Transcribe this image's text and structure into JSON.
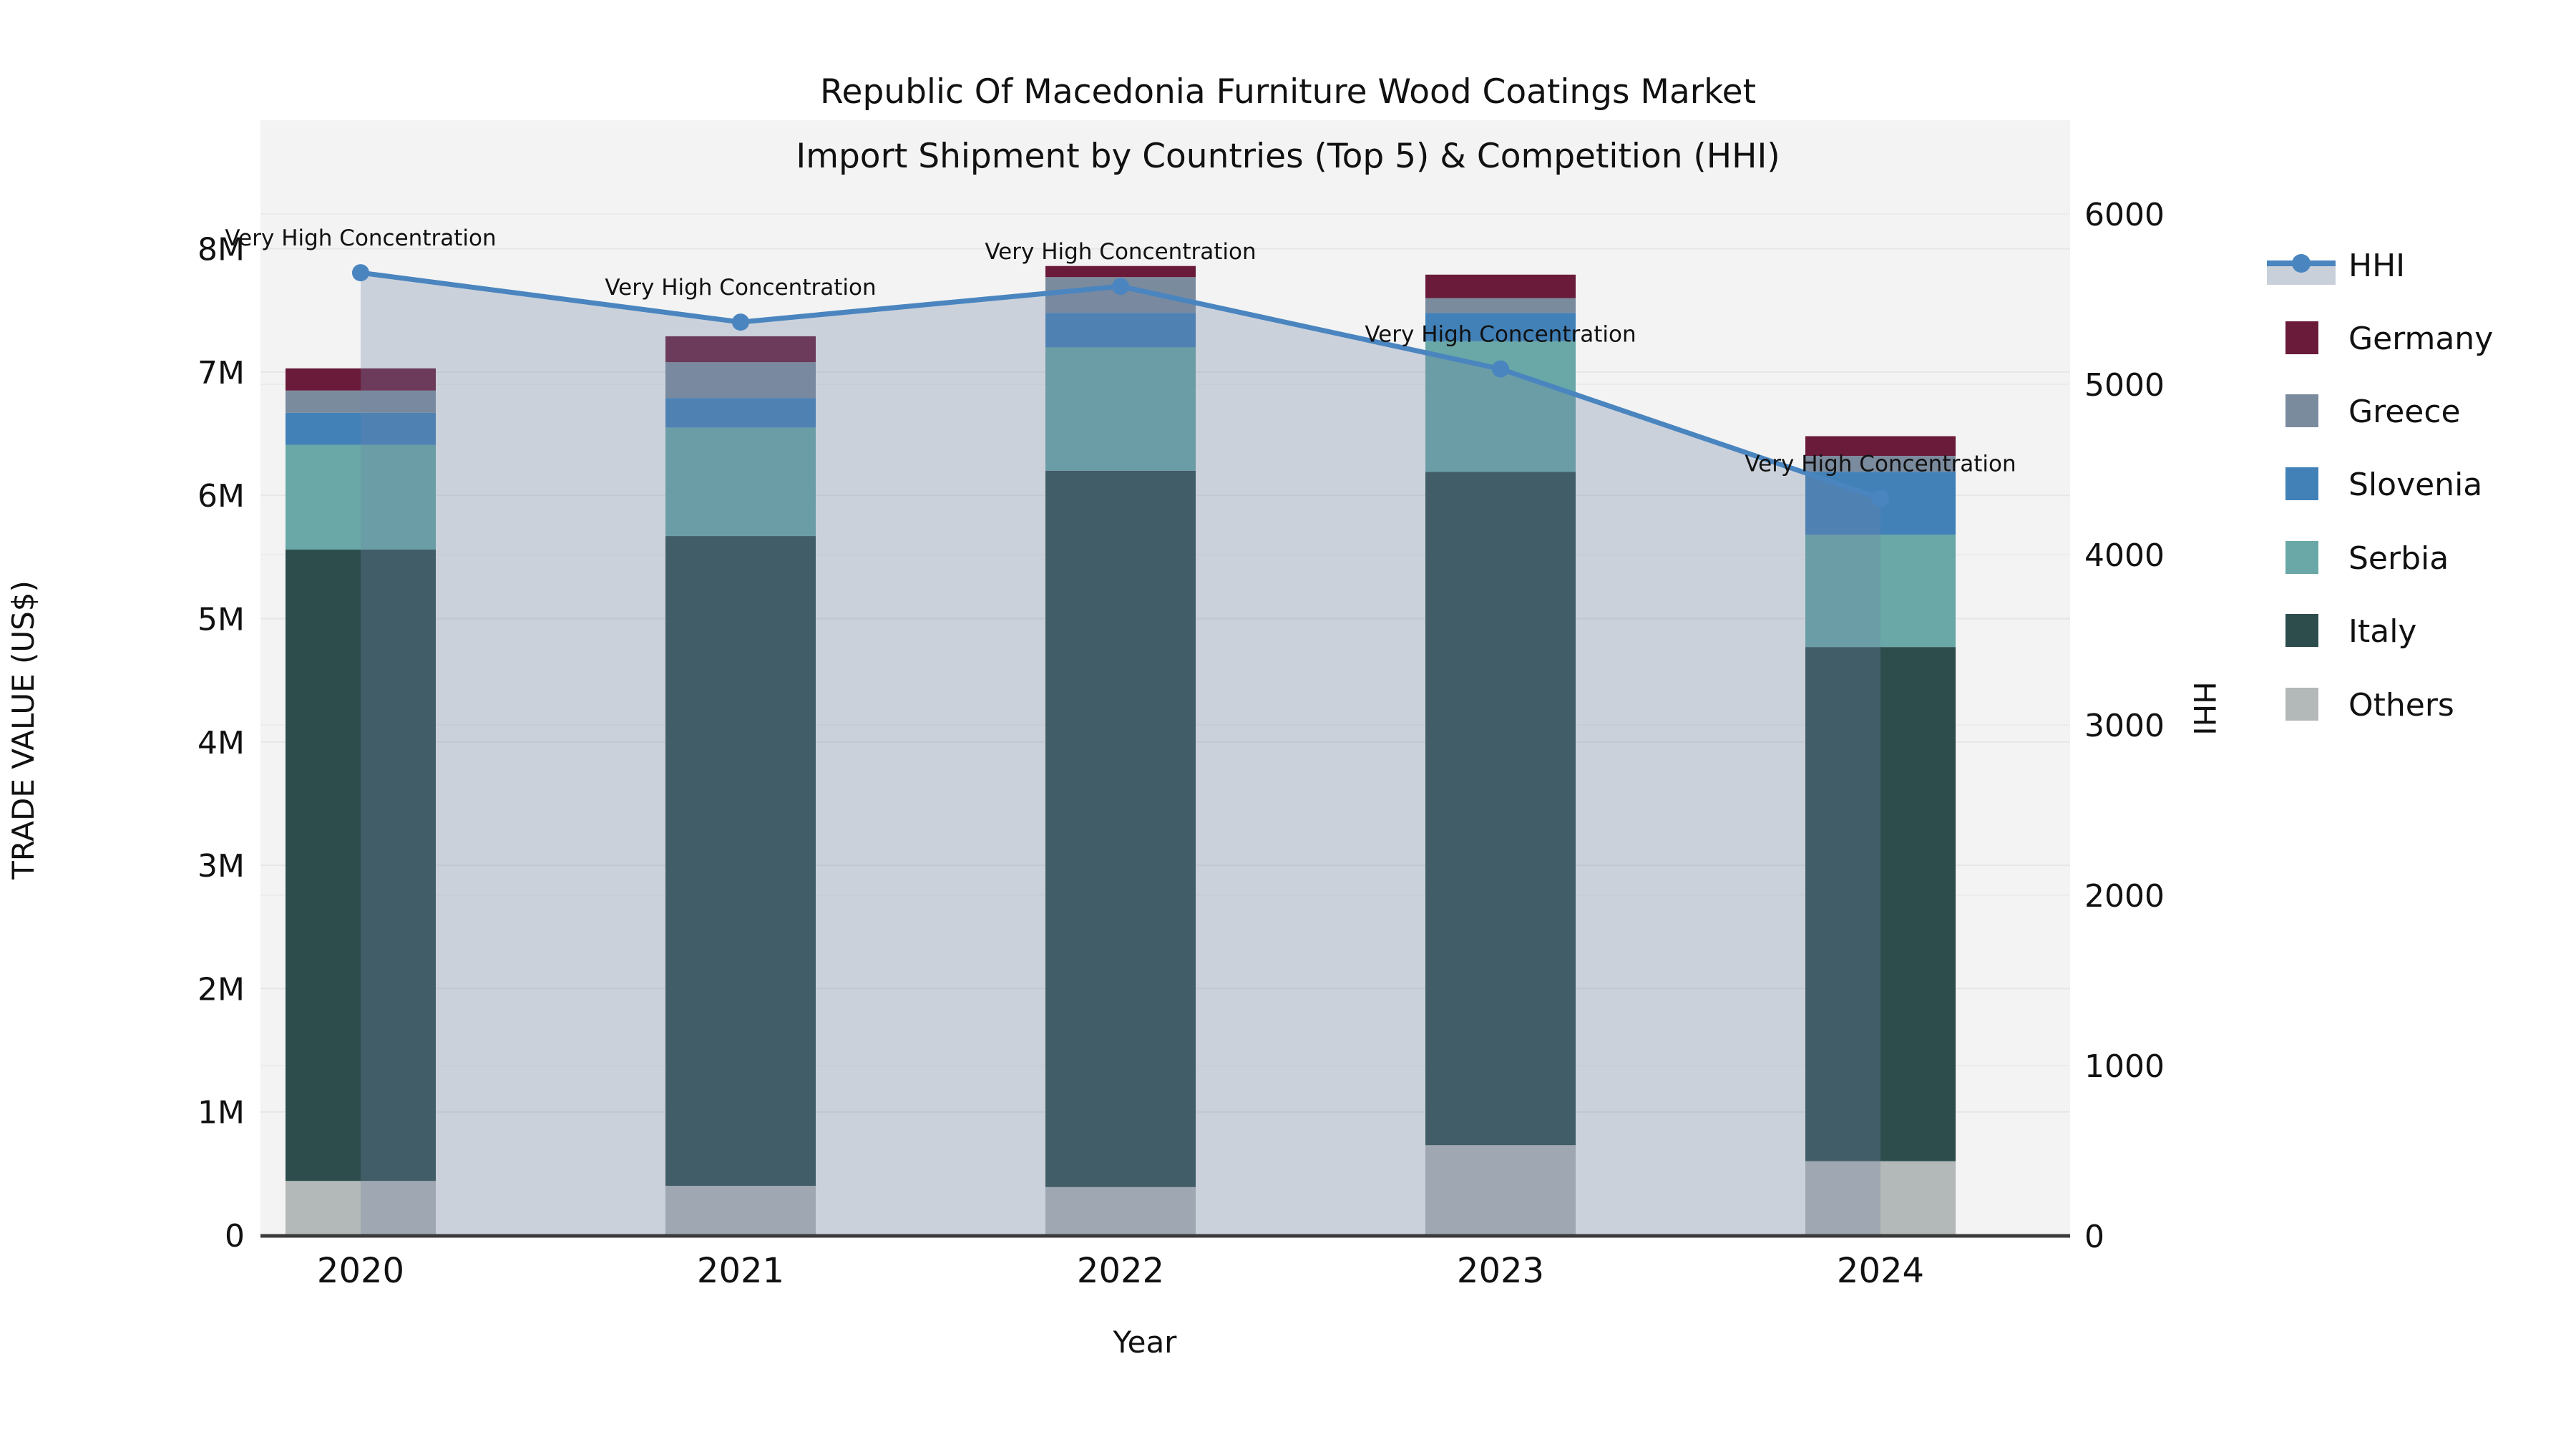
{
  "title": {
    "line1": "Republic Of Macedonia Furniture Wood Coatings Market",
    "line2": "Import Shipment by Countries (Top 5) & Competition (HHI)"
  },
  "colors": {
    "background": "#ffffff",
    "plot_background": "#f3f3f3",
    "grid_left": "#e6e6e6",
    "grid_right": "#ececec",
    "axis_line": "#3a3a3a",
    "text": "#111111",
    "hhi_line": "#4a85bf",
    "hhi_fill": "#7286a7",
    "hhi_fill_opacity": 0.3,
    "legend_hhi_band": "#c9d0da",
    "germany": "#6a1b3a",
    "greece": "#7b8b9e",
    "slovenia": "#4181b8",
    "serbia": "#69a8a6",
    "italy": "#2d4d4d",
    "others": "#b3b8b8"
  },
  "chart_data": {
    "type": "bar+line",
    "title": "Republic Of Macedonia Furniture Wood Coatings Market Import Shipment by Countries (Top 5) & Competition (HHI)",
    "categories": [
      "2020",
      "2021",
      "2022",
      "2023",
      "2024"
    ],
    "xlabel": "Year",
    "left_axis": {
      "label": "TRADE VALUE (US$)",
      "ticks": [
        "0",
        "1M",
        "2M",
        "3M",
        "4M",
        "5M",
        "6M",
        "7M",
        "8M"
      ],
      "tick_values_millions": [
        0,
        1,
        2,
        3,
        4,
        5,
        6,
        7,
        8
      ],
      "range_millions": [
        0,
        9.04
      ]
    },
    "right_axis": {
      "label": "HHI",
      "ticks": [
        "0",
        "1000",
        "2000",
        "3000",
        "4000",
        "5000",
        "6000"
      ],
      "tick_values": [
        0,
        1000,
        2000,
        3000,
        4000,
        5000,
        6000
      ],
      "range": [
        0,
        6550
      ]
    },
    "bar_series": [
      {
        "key": "others",
        "name": "Others",
        "values_millions": [
          0.44,
          0.4,
          0.39,
          0.73,
          0.6
        ]
      },
      {
        "key": "italy",
        "name": "Italy",
        "values_millions": [
          5.12,
          5.27,
          5.81,
          5.46,
          4.17
        ]
      },
      {
        "key": "serbia",
        "name": "Serbia",
        "values_millions": [
          0.85,
          0.88,
          1.0,
          1.06,
          0.91
        ]
      },
      {
        "key": "slovenia",
        "name": "Slovenia",
        "values_millions": [
          0.26,
          0.24,
          0.28,
          0.23,
          0.51
        ]
      },
      {
        "key": "greece",
        "name": "Greece",
        "values_millions": [
          0.18,
          0.29,
          0.29,
          0.12,
          0.13
        ]
      },
      {
        "key": "germany",
        "name": "Germany",
        "values_millions": [
          0.18,
          0.21,
          0.09,
          0.19,
          0.16
        ]
      }
    ],
    "line_series": {
      "name": "HHI",
      "values": [
        5655,
        5365,
        5575,
        5090,
        4330
      ],
      "style": "line with circular markers and translucent area fill to baseline"
    },
    "annotations": [
      {
        "x": "2020",
        "text": "Very High Concentration"
      },
      {
        "x": "2021",
        "text": "Very High Concentration"
      },
      {
        "x": "2022",
        "text": "Very High Concentration"
      },
      {
        "x": "2023",
        "text": "Very High Concentration"
      },
      {
        "x": "2024",
        "text": "Very High Concentration"
      }
    ],
    "legend": {
      "position": "right",
      "entries": [
        {
          "key": "hhi",
          "label": "HHI",
          "swatch": "line"
        },
        {
          "key": "germany",
          "label": "Germany",
          "swatch": "square"
        },
        {
          "key": "greece",
          "label": "Greece",
          "swatch": "square"
        },
        {
          "key": "slovenia",
          "label": "Slovenia",
          "swatch": "square"
        },
        {
          "key": "serbia",
          "label": "Serbia",
          "swatch": "square"
        },
        {
          "key": "italy",
          "label": "Italy",
          "swatch": "square"
        },
        {
          "key": "others",
          "label": "Others",
          "swatch": "square"
        }
      ]
    },
    "grid": "horizontal gridlines for both y axes, very faint",
    "legend_note": "stack order bottom-to-top: Others, Italy, Serbia, Slovenia, Greece, Germany"
  }
}
